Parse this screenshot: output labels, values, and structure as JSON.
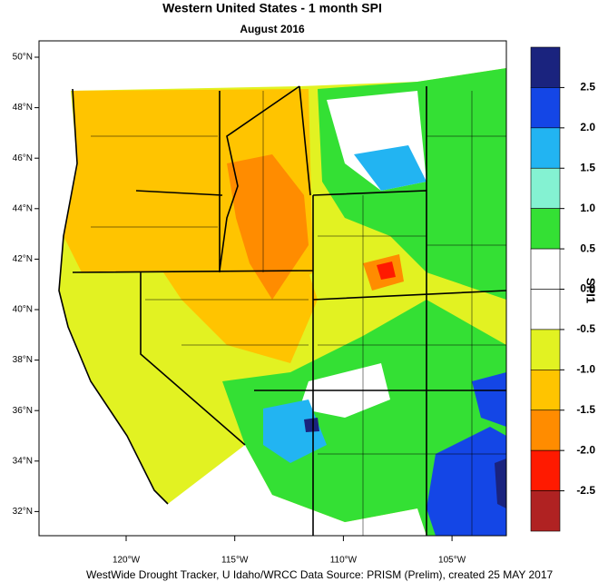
{
  "title": "Western United States - 1 month SPI",
  "subtitle": "August 2016",
  "footer": "WestWide Drought Tracker, U Idaho/WRCC Data Source: PRISM (Prelim), created 25 MAY 2017",
  "map": {
    "lat_labels": [
      "50°N",
      "48°N",
      "46°N",
      "44°N",
      "42°N",
      "40°N",
      "38°N",
      "36°N",
      "34°N",
      "32°N"
    ],
    "lon_labels": [
      "120°W",
      "115°W",
      "110°W",
      "105°W"
    ]
  },
  "colorbar": {
    "title": "SPI1",
    "colors": [
      "#1a237e",
      "#1446e6",
      "#22b4f2",
      "#84f2d2",
      "#34e034",
      "#ffffff",
      "#ffffff",
      "#e2f222",
      "#ffc400",
      "#ff8c00",
      "#ff1a00",
      "#b02222"
    ],
    "ticks": [
      2.5,
      {
        "value": 2,
        "label": "2.0"
      },
      1.5,
      {
        "value": 1,
        "label": "1.0"
      },
      0.5,
      {
        "value": 0,
        "label": "0.0"
      },
      -0.5,
      {
        "value": -1,
        "label": "-1.0"
      },
      -1.5,
      {
        "value": -2,
        "label": "-2.0"
      },
      -2.5
    ]
  }
}
